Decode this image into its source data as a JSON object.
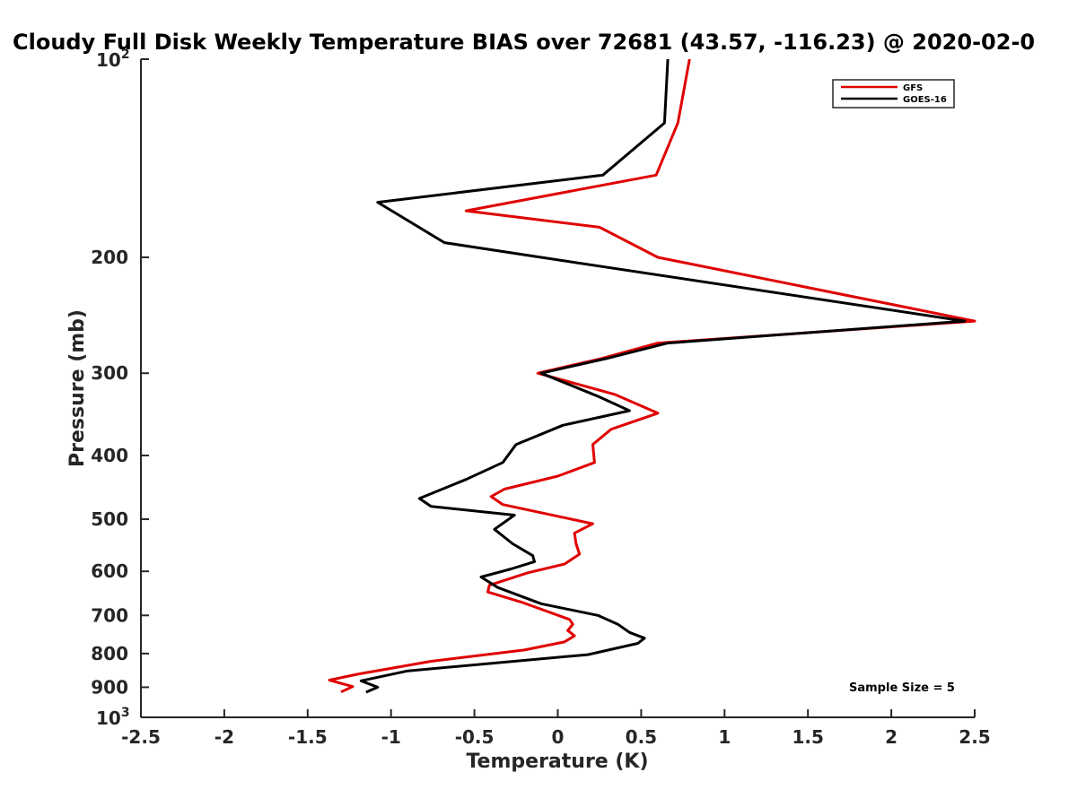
{
  "chart_data": {
    "type": "line",
    "title": "Cloudy Full Disk Weekly Temperature BIAS over 72681 (43.57, -116.23) @ 2020-02-0",
    "xlabel": "Temperature (K)",
    "ylabel": "Pressure (mb)",
    "xlim": [
      -2.5,
      2.5
    ],
    "ylim": [
      100,
      1000
    ],
    "y_scale": "log",
    "y_reversed": true,
    "grid": false,
    "legend_position": "top-right",
    "x_ticks": [
      "-2.5",
      "-2",
      "-1.5",
      "-1",
      "-0.5",
      "0",
      "0.5",
      "1",
      "1.5",
      "2",
      "2.5"
    ],
    "y_ticks": [
      {
        "value": 100,
        "base": "10",
        "exp": "2"
      },
      {
        "value": 200,
        "label": "200"
      },
      {
        "value": 300,
        "label": "300"
      },
      {
        "value": 400,
        "label": "400"
      },
      {
        "value": 500,
        "label": "500"
      },
      {
        "value": 600,
        "label": "600"
      },
      {
        "value": 700,
        "label": "700"
      },
      {
        "value": 800,
        "label": "800"
      },
      {
        "value": 900,
        "label": "900"
      },
      {
        "value": 1000,
        "base": "10",
        "exp": "3"
      }
    ],
    "annotation": "Sample Size = 5",
    "series": [
      {
        "name": "GFS",
        "color": "#e00000",
        "points": [
          [
            0.79,
            100
          ],
          [
            0.72,
            125
          ],
          [
            0.59,
            150
          ],
          [
            -0.55,
            170
          ],
          [
            0.25,
            180
          ],
          [
            0.6,
            200
          ],
          [
            2.5,
            250
          ],
          [
            0.6,
            270
          ],
          [
            0.26,
            285
          ],
          [
            -0.12,
            300
          ],
          [
            0.34,
            323
          ],
          [
            0.6,
            345
          ],
          [
            0.32,
            365
          ],
          [
            0.21,
            385
          ],
          [
            0.22,
            410
          ],
          [
            0.0,
            430
          ],
          [
            -0.32,
            450
          ],
          [
            -0.4,
            462
          ],
          [
            -0.33,
            475
          ],
          [
            0.21,
            508
          ],
          [
            0.1,
            525
          ],
          [
            0.11,
            545
          ],
          [
            0.13,
            565
          ],
          [
            0.04,
            585
          ],
          [
            -0.18,
            603
          ],
          [
            -0.41,
            630
          ],
          [
            -0.42,
            645
          ],
          [
            -0.22,
            668
          ],
          [
            0.07,
            710
          ],
          [
            0.09,
            722
          ],
          [
            0.06,
            738
          ],
          [
            0.1,
            752
          ],
          [
            0.04,
            768
          ],
          [
            -0.2,
            790
          ],
          [
            -0.76,
            822
          ],
          [
            -1.2,
            860
          ],
          [
            -1.37,
            878
          ],
          [
            -1.23,
            898
          ],
          [
            -1.3,
            915
          ]
        ]
      },
      {
        "name": "GOES-16",
        "color": "#000000",
        "points": [
          [
            0.66,
            100
          ],
          [
            0.64,
            125
          ],
          [
            0.27,
            150
          ],
          [
            -1.08,
            165
          ],
          [
            -0.68,
            190
          ],
          [
            -0.1,
            200
          ],
          [
            2.44,
            250
          ],
          [
            0.66,
            270
          ],
          [
            0.29,
            285
          ],
          [
            -0.1,
            300
          ],
          [
            0.25,
            326
          ],
          [
            0.43,
            342
          ],
          [
            0.03,
            360
          ],
          [
            -0.25,
            385
          ],
          [
            -0.33,
            410
          ],
          [
            -0.55,
            435
          ],
          [
            -0.83,
            465
          ],
          [
            -0.76,
            478
          ],
          [
            -0.26,
            493
          ],
          [
            -0.38,
            518
          ],
          [
            -0.27,
            545
          ],
          [
            -0.15,
            568
          ],
          [
            -0.14,
            580
          ],
          [
            -0.28,
            595
          ],
          [
            -0.46,
            612
          ],
          [
            -0.36,
            635
          ],
          [
            -0.1,
            672
          ],
          [
            0.24,
            700
          ],
          [
            0.36,
            722
          ],
          [
            0.43,
            743
          ],
          [
            0.52,
            758
          ],
          [
            0.48,
            772
          ],
          [
            0.18,
            803
          ],
          [
            -0.9,
            850
          ],
          [
            -1.18,
            880
          ],
          [
            -1.08,
            900
          ],
          [
            -1.15,
            916
          ]
        ]
      }
    ]
  }
}
